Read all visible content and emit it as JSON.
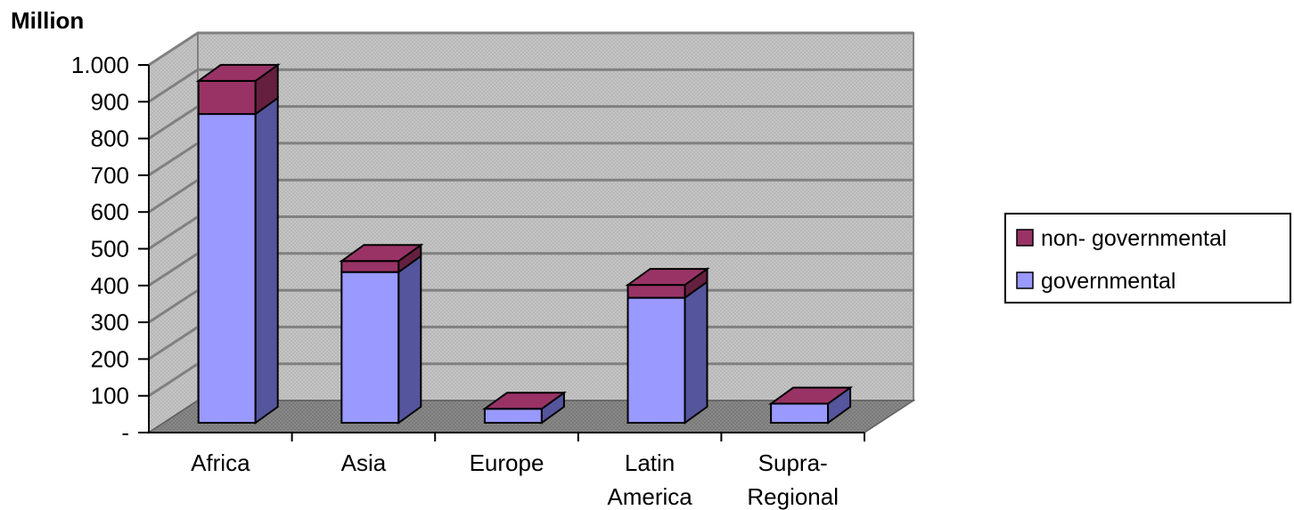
{
  "chart_data": {
    "type": "bar",
    "stacked": true,
    "three_d": true,
    "title": "",
    "unit_label": "Million",
    "xlabel": "",
    "ylabel": "",
    "categories": [
      "Africa",
      "Asia",
      "Europe",
      "Latin America",
      "Supra-Regional"
    ],
    "category_lines": [
      [
        "Africa"
      ],
      [
        "Asia"
      ],
      [
        "Europe"
      ],
      [
        "Latin",
        "America"
      ],
      [
        "Supra-",
        "Regional"
      ]
    ],
    "series": [
      {
        "name": "governmental",
        "values": [
          840,
          410,
          38,
          340,
          52
        ],
        "color": "#9999ff"
      },
      {
        "name": "non- governmental",
        "values": [
          90,
          30,
          0,
          35,
          0
        ],
        "color": "#993366"
      }
    ],
    "ylim": [
      0,
      1000
    ],
    "yticks": [
      0,
      100,
      200,
      300,
      400,
      500,
      600,
      700,
      800,
      900,
      1000
    ],
    "ytick_labels": [
      "-",
      "100",
      "200",
      "300",
      "400",
      "500",
      "600",
      "700",
      "800",
      "900",
      "1.000"
    ],
    "grid": true,
    "legend_position": "right",
    "legend_entries": [
      "non- governmental",
      "governmental"
    ],
    "colors": {
      "wall": "#c0c0c0",
      "floor": "#808080",
      "gridline": "#808080",
      "governmental_front": "#9999ff",
      "governmental_side": "#55559e",
      "non_governmental_front": "#993366",
      "non_governmental_side": "#66203f"
    }
  }
}
